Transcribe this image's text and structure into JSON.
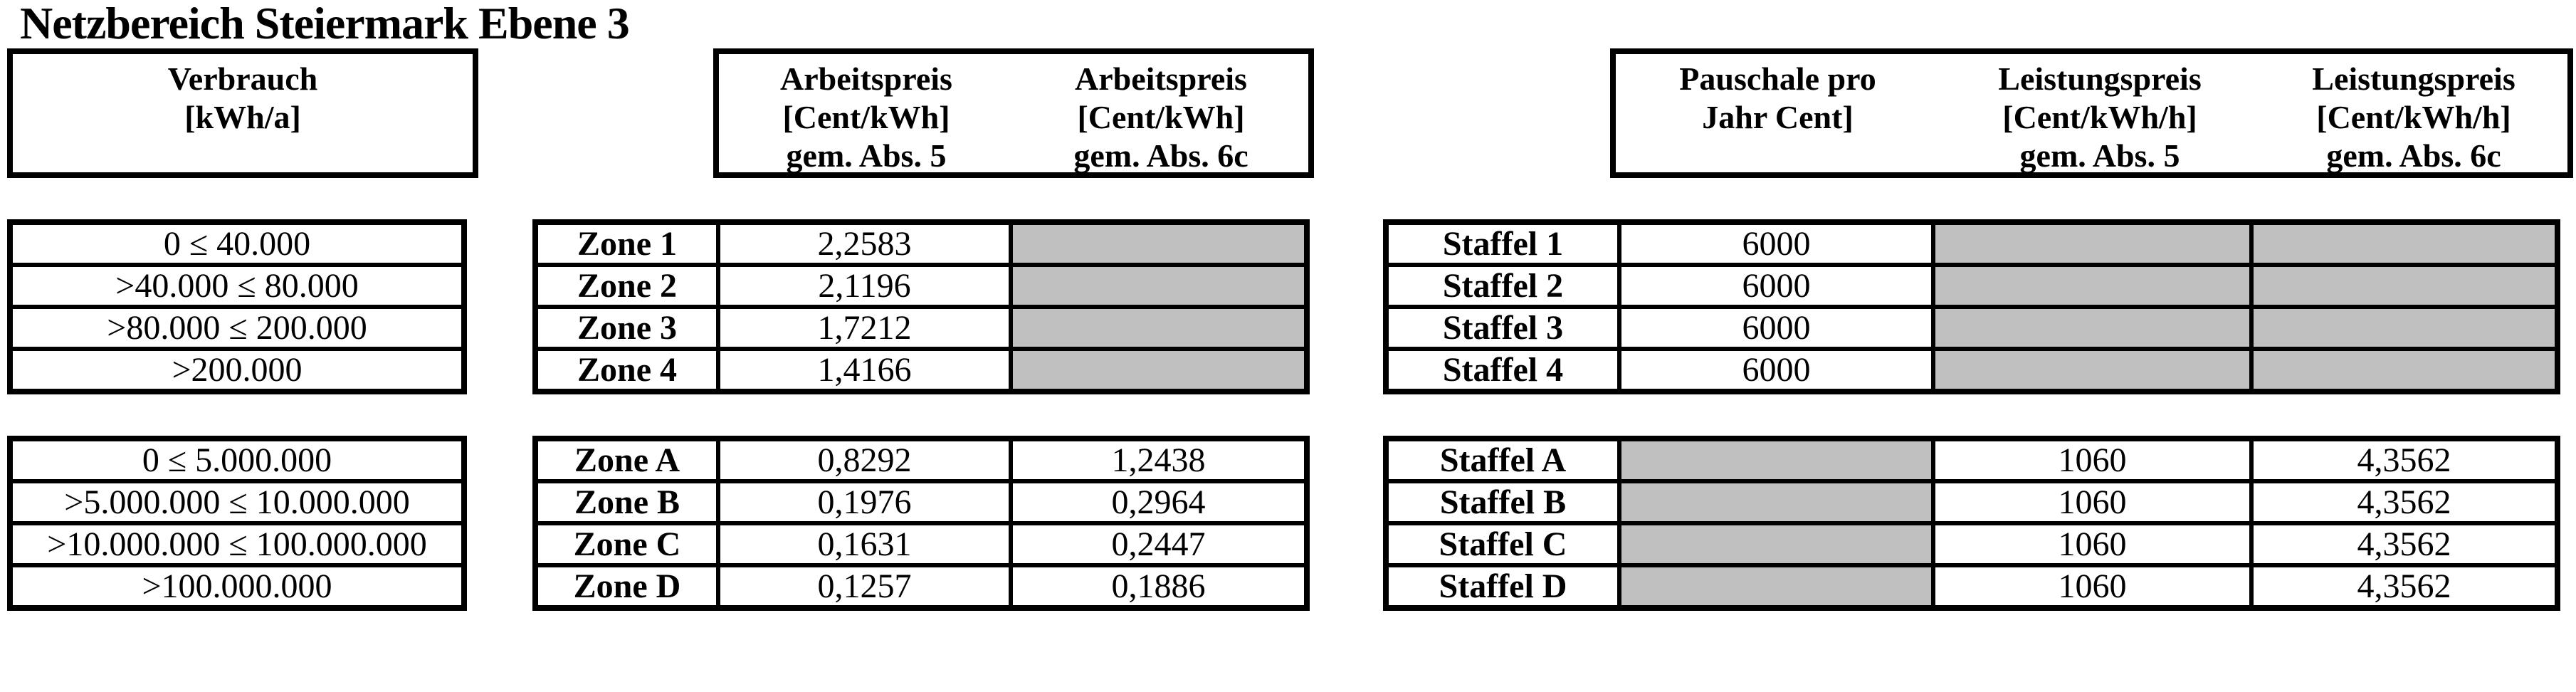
{
  "title": "Netzbereich Steiermark Ebene 3",
  "colors": {
    "blocked_cell_grey": "#c0c0c0",
    "border_black": "#000000",
    "background_white": "#ffffff"
  },
  "verbrauch_header": {
    "line1": "Verbrauch",
    "line2": "[kWh/a]"
  },
  "arbeitspreis_header": {
    "col1": {
      "line1": "Arbeitspreis",
      "line2": "[Cent/kWh]",
      "line3": "gem. Abs. 5"
    },
    "col2": {
      "line1": "Arbeitspreis",
      "line2": "[Cent/kWh]",
      "line3": "gem. Abs. 6c"
    }
  },
  "leistung_header": {
    "col1": {
      "line1": "Pauschale pro",
      "line2": "Jahr Cent]",
      "line3": ""
    },
    "col2": {
      "line1": "Leistungspreis",
      "line2": "[Cent/kWh/h]",
      "line3": "gem. Abs. 5"
    },
    "col3": {
      "line1": "Leistungspreis",
      "line2": "[Cent/kWh/h]",
      "line3": "gem. Abs. 6c"
    }
  },
  "verbrauch_group1": {
    "rows": [
      "0 ≤ 40.000",
      ">40.000 ≤ 80.000",
      ">80.000 ≤ 200.000",
      ">200.000"
    ]
  },
  "verbrauch_group2": {
    "rows": [
      "0 ≤ 5.000.000",
      ">5.000.000 ≤ 10.000.000",
      ">10.000.000 ≤ 100.000.000",
      ">100.000.000"
    ]
  },
  "zone_group1": {
    "rows": [
      {
        "label": "Zone 1",
        "abs5": "2,2583",
        "abs6c": null
      },
      {
        "label": "Zone 2",
        "abs5": "2,1196",
        "abs6c": null
      },
      {
        "label": "Zone 3",
        "abs5": "1,7212",
        "abs6c": null
      },
      {
        "label": "Zone 4",
        "abs5": "1,4166",
        "abs6c": null
      }
    ]
  },
  "zone_group2": {
    "rows": [
      {
        "label": "Zone A",
        "abs5": "0,8292",
        "abs6c": "1,2438"
      },
      {
        "label": "Zone B",
        "abs5": "0,1976",
        "abs6c": "0,2964"
      },
      {
        "label": "Zone C",
        "abs5": "0,1631",
        "abs6c": "0,2447"
      },
      {
        "label": "Zone D",
        "abs5": "0,1257",
        "abs6c": "0,1886"
      }
    ]
  },
  "staffel_group1": {
    "rows": [
      {
        "label": "Staffel 1",
        "pauschale": "6000",
        "lp5": null,
        "lp6c": null
      },
      {
        "label": "Staffel 2",
        "pauschale": "6000",
        "lp5": null,
        "lp6c": null
      },
      {
        "label": "Staffel 3",
        "pauschale": "6000",
        "lp5": null,
        "lp6c": null
      },
      {
        "label": "Staffel 4",
        "pauschale": "6000",
        "lp5": null,
        "lp6c": null
      }
    ]
  },
  "staffel_group2": {
    "rows": [
      {
        "label": "Staffel A",
        "pauschale": null,
        "lp5": "1060",
        "lp6c": "4,3562"
      },
      {
        "label": "Staffel B",
        "pauschale": null,
        "lp5": "1060",
        "lp6c": "4,3562"
      },
      {
        "label": "Staffel C",
        "pauschale": null,
        "lp5": "1060",
        "lp6c": "4,3562"
      },
      {
        "label": "Staffel D",
        "pauschale": null,
        "lp5": "1060",
        "lp6c": "4,3562"
      }
    ]
  }
}
